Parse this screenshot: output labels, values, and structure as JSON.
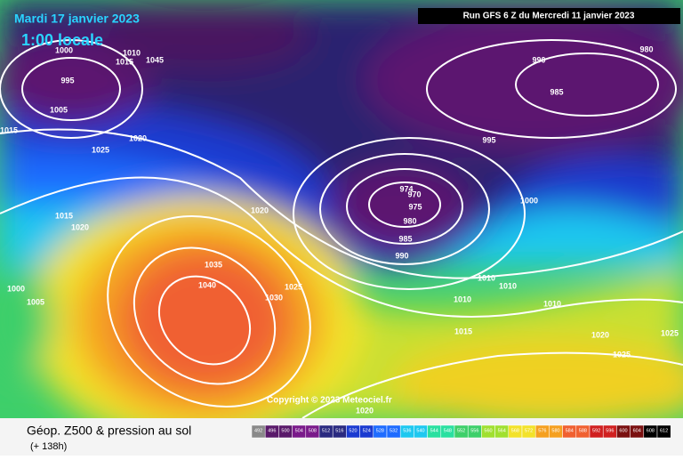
{
  "header": {
    "date": "Mardi 17 janvier 2023",
    "time": "1:00 locale",
    "run": "Run GFS 6 Z du Mercredi 11 janvier 2023"
  },
  "copyright": "Copyright © 2023 Meteociel.fr",
  "footer": {
    "title": "Géop. Z500 & pression au sol",
    "lead": "(+ 138h)"
  },
  "isobar_labels": [
    1000,
    995,
    1005,
    1015,
    1010,
    1015,
    1045,
    1020,
    1025,
    1020,
    1015,
    1020,
    1035,
    1040,
    1025,
    1030,
    1000,
    1005,
    990,
    980,
    985,
    995,
    1000,
    974,
    970,
    975,
    980,
    985,
    990,
    1010,
    1010,
    1010,
    1010,
    1015,
    1020,
    1025,
    1025,
    1020
  ],
  "legend": {
    "levels": [
      492,
      496,
      500,
      504,
      508,
      512,
      516,
      520,
      524,
      528,
      532,
      536,
      540,
      544,
      548,
      552,
      556,
      560,
      564,
      568,
      572,
      576,
      580,
      584,
      588,
      592,
      596,
      600,
      604,
      608,
      612
    ]
  }
}
